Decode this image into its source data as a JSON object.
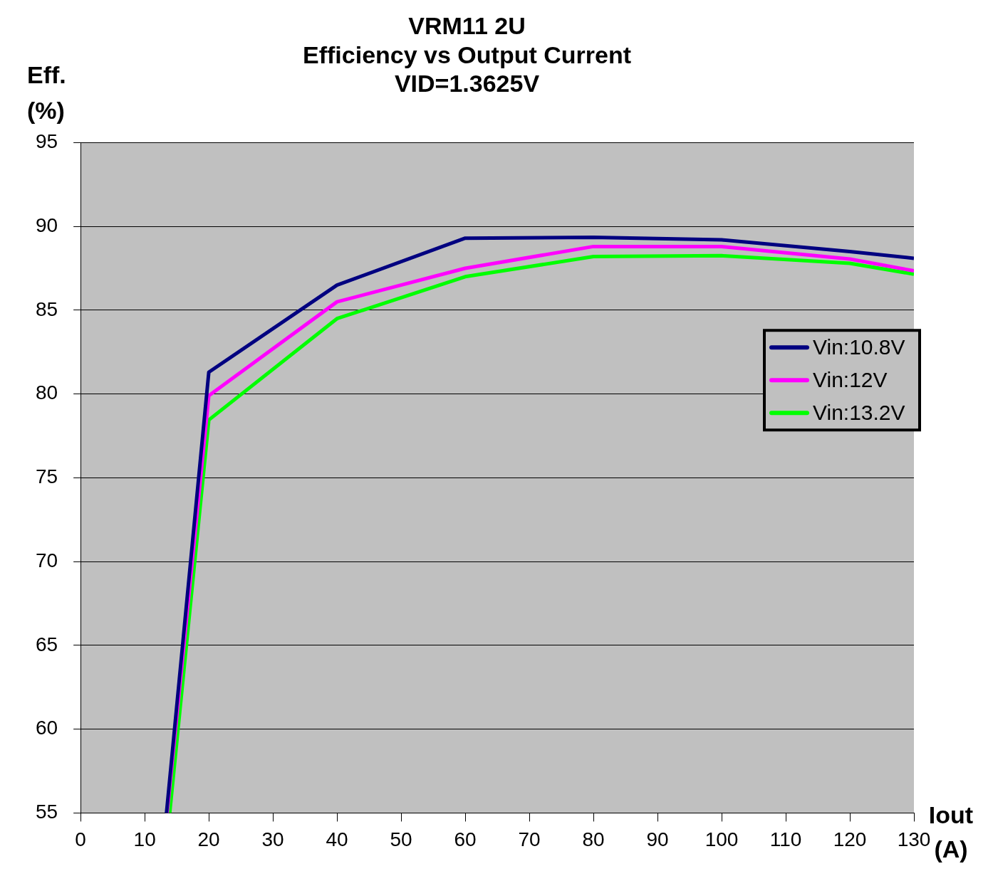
{
  "chart_data": {
    "type": "line",
    "title": "VRM11 2U\nEfficiency vs Output Current\nVID=1.3625V",
    "xlabel": "Iout (A)",
    "ylabel": "Eff. (%)",
    "xlim": [
      0,
      130
    ],
    "xticks": [
      0,
      10,
      20,
      30,
      40,
      50,
      60,
      70,
      80,
      90,
      100,
      110,
      120,
      130
    ],
    "ylim": [
      55,
      95
    ],
    "yticks": [
      55,
      60,
      65,
      70,
      75,
      80,
      85,
      90,
      95
    ],
    "grid": "y",
    "legend": "right",
    "marker": "none",
    "line_style": "solid",
    "series": [
      {
        "name": "Vin:10.8V",
        "color": "#000080",
        "x": [
          13.4,
          20,
          40,
          60,
          80,
          100,
          120,
          130
        ],
        "values": [
          55,
          81.3,
          86.5,
          89.3,
          89.35,
          89.2,
          88.5,
          88.1
        ]
      },
      {
        "name": "Vin:12V",
        "color": "#ff00ff",
        "x": [
          13.5,
          20,
          40,
          60,
          80,
          100,
          120,
          130
        ],
        "values": [
          55,
          79.9,
          85.5,
          87.5,
          88.8,
          88.8,
          88.05,
          87.35
        ]
      },
      {
        "name": "Vin:13.2V",
        "color": "#00ff00",
        "x": [
          13.9,
          20,
          40,
          60,
          80,
          100,
          120,
          130
        ],
        "values": [
          55,
          78.45,
          84.5,
          87,
          88.2,
          88.25,
          87.8,
          87.15
        ]
      }
    ]
  }
}
